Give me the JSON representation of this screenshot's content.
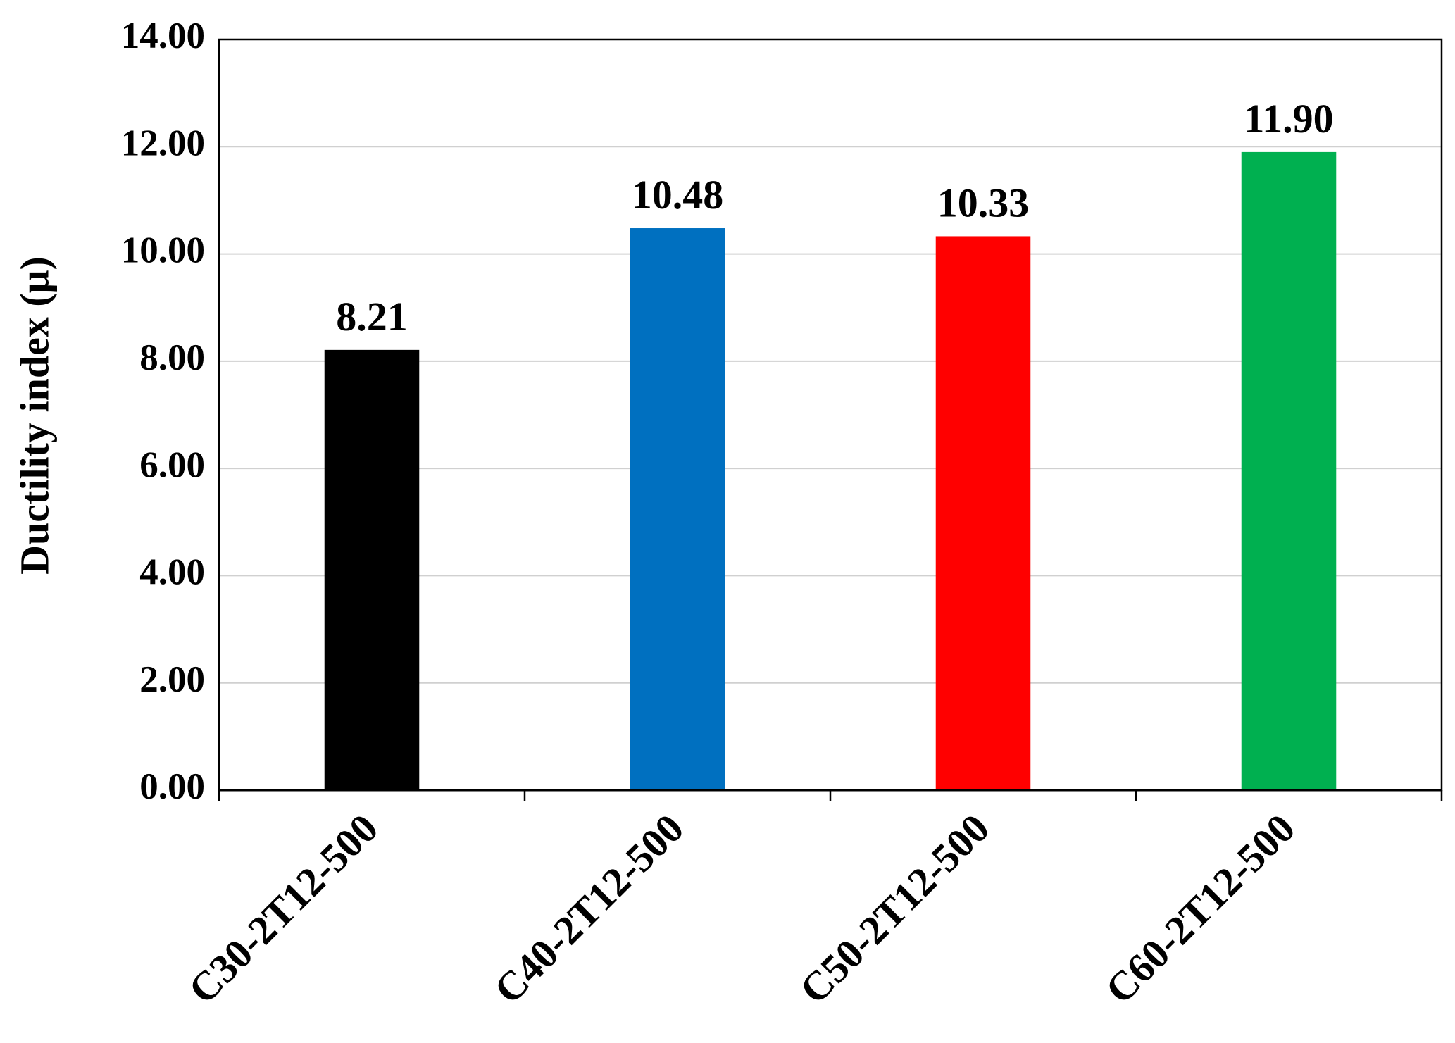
{
  "chart_data": {
    "type": "bar",
    "y_label": "Ductility index (μ)",
    "categories": [
      "C30-2T12-500",
      "C40-2T12-500",
      "C50-2T12-500",
      "C60-2T12-500"
    ],
    "values": [
      8.21,
      10.48,
      10.33,
      11.9
    ],
    "value_labels": [
      "8.21",
      "10.48",
      "10.33",
      "11.90"
    ],
    "colors": [
      "#000000",
      "#0070c0",
      "#ff0000",
      "#00b050"
    ],
    "ylim": [
      0,
      14
    ],
    "yticks": [
      {
        "value": 0,
        "label": "0.00"
      },
      {
        "value": 2,
        "label": "2.00"
      },
      {
        "value": 4,
        "label": "4.00"
      },
      {
        "value": 6,
        "label": "6.00"
      },
      {
        "value": 8,
        "label": "8.00"
      },
      {
        "value": 10,
        "label": "10.00"
      },
      {
        "value": 12,
        "label": "12.00"
      },
      {
        "value": 14,
        "label": "14.00"
      }
    ],
    "grid": true
  }
}
